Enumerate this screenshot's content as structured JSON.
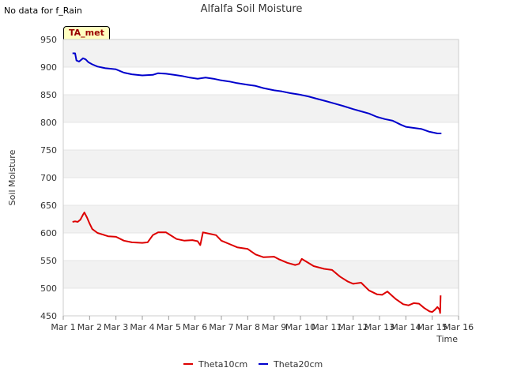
{
  "notice": "No data for f_Rain",
  "badge_label": "TA_met",
  "chart_data": {
    "type": "line",
    "title": "Alfalfa Soil Moisture",
    "xlabel": "Time",
    "ylabel": "Soil Moisture",
    "xlim": [
      1,
      16
    ],
    "ylim": [
      450,
      950
    ],
    "x_ticks": [
      {
        "value": 1,
        "label": "Mar 1"
      },
      {
        "value": 2,
        "label": "Mar 2"
      },
      {
        "value": 3,
        "label": "Mar 3"
      },
      {
        "value": 4,
        "label": "Mar 4"
      },
      {
        "value": 5,
        "label": "Mar 5"
      },
      {
        "value": 6,
        "label": "Mar 6"
      },
      {
        "value": 7,
        "label": "Mar 7"
      },
      {
        "value": 8,
        "label": "Mar 8"
      },
      {
        "value": 9,
        "label": "Mar 9"
      },
      {
        "value": 10,
        "label": "Mar 10"
      },
      {
        "value": 11,
        "label": "Mar 11"
      },
      {
        "value": 12,
        "label": "Mar 12"
      },
      {
        "value": 13,
        "label": "Mar 13"
      },
      {
        "value": 14,
        "label": "Mar 14"
      },
      {
        "value": 15,
        "label": "Mar 15"
      },
      {
        "value": 16,
        "label": "Mar 16"
      }
    ],
    "y_ticks": [
      450,
      500,
      550,
      600,
      650,
      700,
      750,
      800,
      850,
      900,
      950
    ],
    "bands": true,
    "series": [
      {
        "name": "Theta10cm",
        "color": "#dd0000",
        "x": [
          1.35,
          1.45,
          1.55,
          1.65,
          1.75,
          1.8,
          1.9,
          2.0,
          2.1,
          2.3,
          2.5,
          2.7,
          3.0,
          3.3,
          3.6,
          4.0,
          4.2,
          4.4,
          4.6,
          4.9,
          5.0,
          5.3,
          5.6,
          5.9,
          6.1,
          6.2,
          6.3,
          6.4,
          6.8,
          7.0,
          7.3,
          7.6,
          8.0,
          8.3,
          8.6,
          9.0,
          9.2,
          9.5,
          9.8,
          9.95,
          10.05,
          10.5,
          10.9,
          11.2,
          11.5,
          11.8,
          12.0,
          12.3,
          12.6,
          12.9,
          13.1,
          13.3,
          13.6,
          13.9,
          14.1,
          14.3,
          14.5,
          14.7,
          14.9,
          15.0,
          15.1,
          15.2,
          15.28,
          15.3,
          15.32
        ],
        "y": [
          620,
          621,
          620,
          624,
          633,
          637,
          628,
          617,
          607,
          600,
          597,
          594,
          593,
          586,
          583,
          582,
          583,
          596,
          601,
          601,
          598,
          589,
          586,
          587,
          585,
          578,
          601,
          600,
          596,
          586,
          580,
          574,
          571,
          561,
          556,
          557,
          552,
          546,
          542,
          544,
          553,
          540,
          535,
          533,
          521,
          512,
          508,
          510,
          496,
          489,
          488,
          494,
          481,
          471,
          469,
          473,
          472,
          464,
          458,
          457,
          461,
          466,
          461,
          455,
          487
        ]
      },
      {
        "name": "Theta20cm",
        "color": "#0000cc",
        "x": [
          1.35,
          1.45,
          1.5,
          1.6,
          1.75,
          1.85,
          1.95,
          2.1,
          2.3,
          2.6,
          3.0,
          3.3,
          3.6,
          4.0,
          4.4,
          4.6,
          4.9,
          5.2,
          5.5,
          5.8,
          6.1,
          6.4,
          6.7,
          7.0,
          7.3,
          7.6,
          8.0,
          8.3,
          8.6,
          9.0,
          9.3,
          9.6,
          10.0,
          10.3,
          10.6,
          11.0,
          11.3,
          11.6,
          12.0,
          12.3,
          12.6,
          12.9,
          13.2,
          13.5,
          13.8,
          14.0,
          14.3,
          14.6,
          14.9,
          15.2,
          15.35
        ],
        "y": [
          925,
          925,
          912,
          910,
          916,
          914,
          909,
          905,
          901,
          898,
          896,
          890,
          887,
          885,
          886,
          889,
          888,
          886,
          884,
          881,
          879,
          881,
          879,
          876,
          874,
          871,
          868,
          866,
          862,
          858,
          856,
          853,
          850,
          847,
          843,
          838,
          834,
          830,
          824,
          820,
          816,
          810,
          806,
          803,
          796,
          792,
          790,
          788,
          783,
          780,
          780
        ]
      }
    ]
  }
}
